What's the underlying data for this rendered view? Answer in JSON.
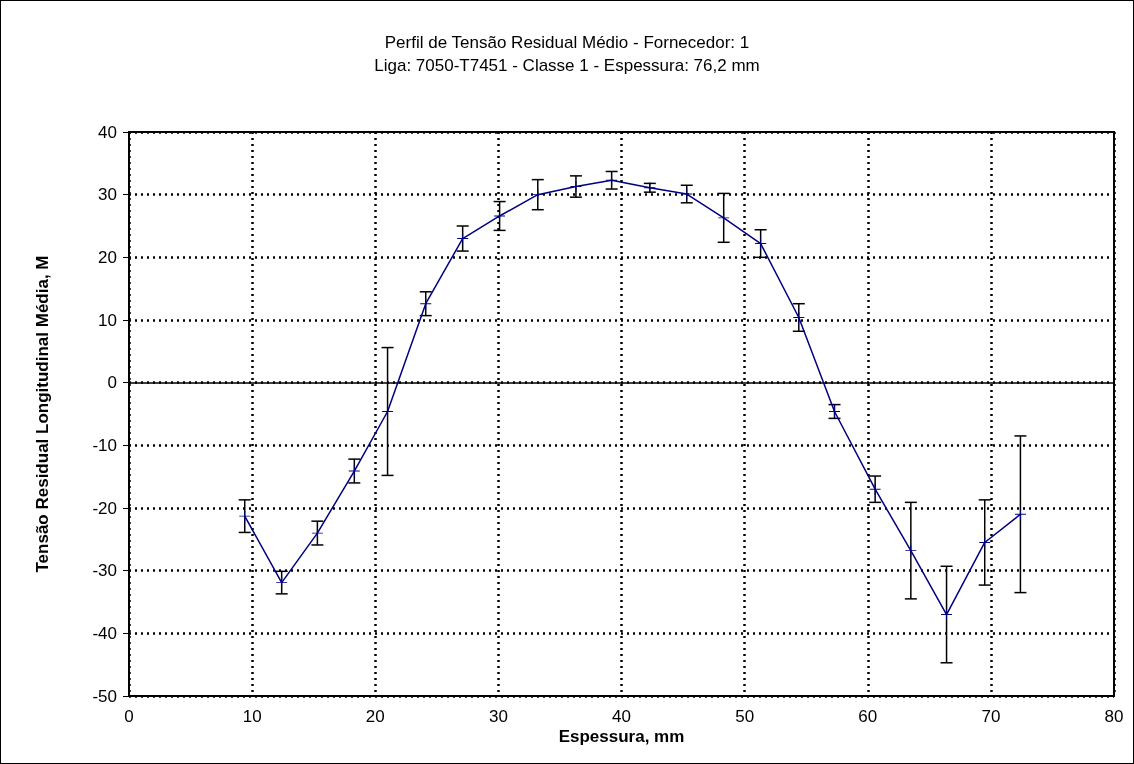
{
  "chart_data": {
    "type": "line",
    "title": "Perfil de Tensão Residual Médio - Fornecedor: 1",
    "subtitle": "Liga: 7050-T7451 - Classe 1 - Espessura: 76,2 mm",
    "xlabel": "Espessura, mm",
    "ylabel": "Tensão Residual Longitudinal Média, M",
    "x": [
      9.4,
      12.4,
      15.3,
      18.3,
      21.0,
      24.1,
      27.1,
      30.1,
      33.2,
      36.3,
      39.2,
      42.3,
      45.3,
      48.3,
      51.3,
      54.4,
      57.3,
      60.6,
      63.5,
      66.4,
      69.5,
      72.4
    ],
    "series": [
      {
        "color": "#000080",
        "values": [
          -21.3,
          -31.9,
          -24.0,
          -14.1,
          -4.6,
          12.6,
          23.0,
          26.6,
          30.0,
          31.3,
          32.3,
          31.1,
          30.1,
          26.3,
          22.2,
          10.4,
          -4.6,
          -17.0,
          -26.8,
          -37.0,
          -25.5,
          -21.0
        ],
        "errors": [
          2.6,
          1.8,
          1.9,
          1.9,
          10.2,
          1.9,
          2.0,
          2.3,
          2.4,
          1.7,
          1.4,
          0.7,
          1.4,
          3.9,
          2.2,
          2.2,
          1.1,
          2.1,
          7.7,
          7.7,
          6.8,
          12.5
        ]
      }
    ],
    "xlim": [
      0,
      80
    ],
    "xticks": [
      0,
      10,
      20,
      30,
      40,
      50,
      60,
      70,
      80
    ],
    "ylim": [
      -50,
      40
    ],
    "yticks": [
      -50,
      -40,
      -30,
      -20,
      -10,
      0,
      10,
      20,
      30,
      40
    ],
    "grid": true,
    "marker": "cross",
    "line_style": "solid"
  }
}
